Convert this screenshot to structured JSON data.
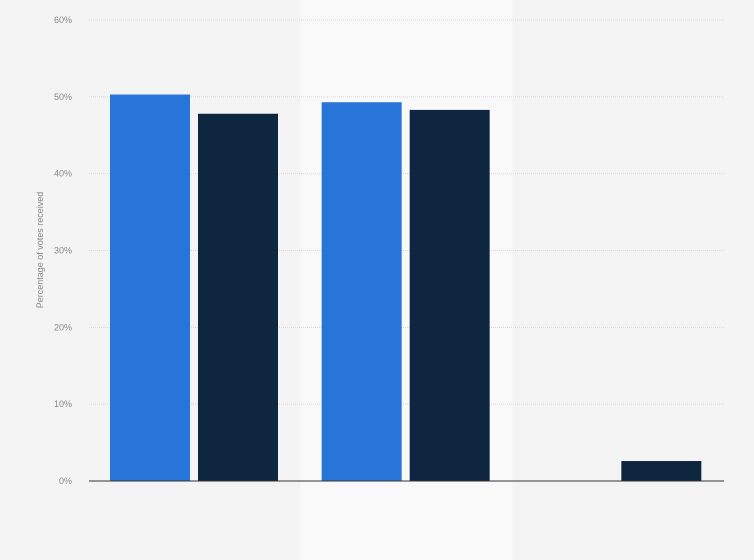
{
  "chart_data": {
    "type": "bar",
    "categories": [
      "",
      "",
      ""
    ],
    "series": [
      {
        "values": [
          50.3,
          49.3,
          0
        ]
      },
      {
        "values": [
          47.8,
          48.3,
          2.6
        ]
      }
    ],
    "colors": [
      "#2775d9",
      "#0f2640"
    ],
    "ylabel": "Percentage of votes received",
    "ylim": [
      0,
      60
    ],
    "yticks": [
      "0%",
      "10%",
      "20%",
      "30%",
      "40%",
      "50%",
      "60%"
    ],
    "grid": true,
    "highlighted_category_index": 1
  }
}
